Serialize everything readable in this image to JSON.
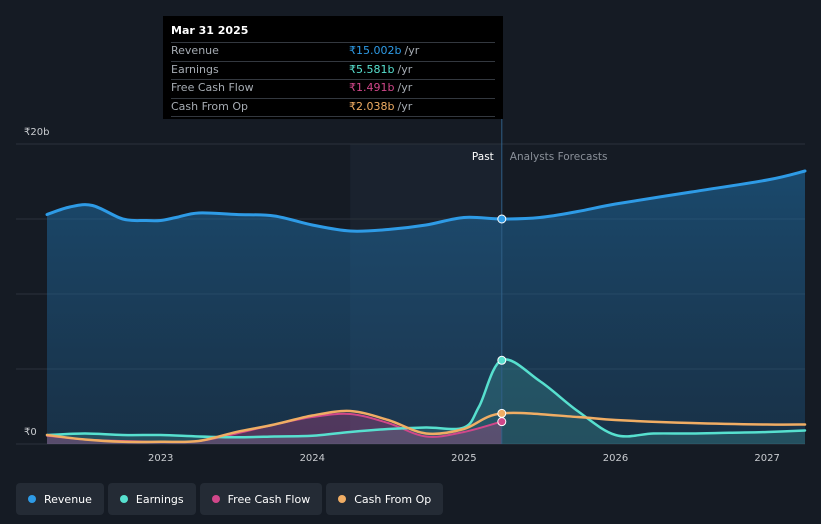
{
  "colors": {
    "revenue": "#2e9be6",
    "earnings": "#57e0cf",
    "free_cash_flow": "#d1478a",
    "cash_from_op": "#f0ad64",
    "background": "#151b24",
    "grid": "#2b323b"
  },
  "tooltip": {
    "date": "Mar 31 2025",
    "rows": [
      {
        "label": "Revenue",
        "value": "₹15.002b",
        "unit": "/yr",
        "color": "#2e9be6"
      },
      {
        "label": "Earnings",
        "value": "₹5.581b",
        "unit": "/yr",
        "color": "#57e0cf"
      },
      {
        "label": "Free Cash Flow",
        "value": "₹1.491b",
        "unit": "/yr",
        "color": "#d1478a"
      },
      {
        "label": "Cash From Op",
        "value": "₹2.038b",
        "unit": "/yr",
        "color": "#f0ad64"
      }
    ]
  },
  "legend": [
    {
      "label": "Revenue",
      "color": "#2e9be6"
    },
    {
      "label": "Earnings",
      "color": "#57e0cf"
    },
    {
      "label": "Free Cash Flow",
      "color": "#d1478a"
    },
    {
      "label": "Cash From Op",
      "color": "#f0ad64"
    }
  ],
  "chart_data": {
    "type": "line",
    "title": "",
    "xlabel": "",
    "ylabel": "",
    "y_unit": "INR billions",
    "ylim": [
      0,
      20
    ],
    "y_tick_labels": [
      {
        "value": 20,
        "label": "₹20b"
      },
      {
        "value": 0,
        "label": "₹0"
      }
    ],
    "x_range": [
      2022.25,
      2027.25
    ],
    "x_ticks": [
      2023,
      2024,
      2025,
      2026,
      2027
    ],
    "x_tick_labels": [
      "2023",
      "2024",
      "2025",
      "2026",
      "2027"
    ],
    "past_label": "Past",
    "forecast_label": "Analysts Forecasts",
    "past_start": 2024.25,
    "divider": 2025.25,
    "grid": true,
    "series": [
      {
        "name": "Revenue",
        "key": "revenue",
        "fill": true,
        "points": [
          [
            2022.25,
            15.3
          ],
          [
            2022.4,
            15.8
          ],
          [
            2022.55,
            15.9
          ],
          [
            2022.75,
            15.0
          ],
          [
            2022.9,
            14.9
          ],
          [
            2023.0,
            14.9
          ],
          [
            2023.1,
            15.1
          ],
          [
            2023.25,
            15.4
          ],
          [
            2023.5,
            15.3
          ],
          [
            2023.75,
            15.2
          ],
          [
            2024.0,
            14.6
          ],
          [
            2024.25,
            14.2
          ],
          [
            2024.5,
            14.3
          ],
          [
            2024.75,
            14.6
          ],
          [
            2025.0,
            15.1
          ],
          [
            2025.25,
            15.0
          ],
          [
            2025.5,
            15.1
          ],
          [
            2025.75,
            15.5
          ],
          [
            2026.0,
            16.0
          ],
          [
            2026.5,
            16.8
          ],
          [
            2027.0,
            17.6
          ],
          [
            2027.25,
            18.2
          ]
        ]
      },
      {
        "name": "Earnings",
        "key": "earnings",
        "fill": true,
        "points": [
          [
            2022.25,
            0.6
          ],
          [
            2022.5,
            0.7
          ],
          [
            2022.75,
            0.6
          ],
          [
            2023.0,
            0.6
          ],
          [
            2023.25,
            0.5
          ],
          [
            2023.5,
            0.45
          ],
          [
            2023.75,
            0.5
          ],
          [
            2024.0,
            0.55
          ],
          [
            2024.25,
            0.8
          ],
          [
            2024.5,
            1.0
          ],
          [
            2024.75,
            1.1
          ],
          [
            2025.0,
            1.1
          ],
          [
            2025.1,
            2.5
          ],
          [
            2025.25,
            5.6
          ],
          [
            2025.5,
            4.2
          ],
          [
            2025.75,
            2.2
          ],
          [
            2026.0,
            0.6
          ],
          [
            2026.25,
            0.7
          ],
          [
            2026.5,
            0.7
          ],
          [
            2026.75,
            0.75
          ],
          [
            2027.0,
            0.8
          ],
          [
            2027.25,
            0.9
          ]
        ]
      },
      {
        "name": "Free Cash Flow",
        "key": "free_cash_flow",
        "fill": true,
        "points": [
          [
            2022.25,
            0.55
          ],
          [
            2022.5,
            0.3
          ],
          [
            2022.75,
            0.2
          ],
          [
            2023.0,
            0.15
          ],
          [
            2023.25,
            0.2
          ],
          [
            2023.5,
            0.7
          ],
          [
            2023.75,
            1.3
          ],
          [
            2024.0,
            1.8
          ],
          [
            2024.25,
            2.0
          ],
          [
            2024.5,
            1.4
          ],
          [
            2024.75,
            0.5
          ],
          [
            2025.0,
            0.8
          ],
          [
            2025.25,
            1.5
          ]
        ]
      },
      {
        "name": "Cash From Op",
        "key": "cash_from_op",
        "fill": false,
        "points": [
          [
            2022.25,
            0.6
          ],
          [
            2022.5,
            0.3
          ],
          [
            2022.75,
            0.15
          ],
          [
            2023.0,
            0.15
          ],
          [
            2023.25,
            0.2
          ],
          [
            2023.5,
            0.8
          ],
          [
            2023.75,
            1.3
          ],
          [
            2024.0,
            1.9
          ],
          [
            2024.25,
            2.2
          ],
          [
            2024.5,
            1.6
          ],
          [
            2024.75,
            0.7
          ],
          [
            2025.0,
            1.0
          ],
          [
            2025.25,
            2.04
          ],
          [
            2025.75,
            1.8
          ],
          [
            2026.0,
            1.6
          ],
          [
            2026.5,
            1.4
          ],
          [
            2027.0,
            1.3
          ],
          [
            2027.25,
            1.3
          ]
        ]
      }
    ],
    "markers": [
      {
        "series": "revenue",
        "x": 2025.25,
        "y": 15.0
      },
      {
        "series": "earnings",
        "x": 2025.25,
        "y": 5.58
      },
      {
        "series": "cash_from_op",
        "x": 2025.25,
        "y": 2.04
      },
      {
        "series": "free_cash_flow",
        "x": 2025.25,
        "y": 1.49
      }
    ]
  }
}
